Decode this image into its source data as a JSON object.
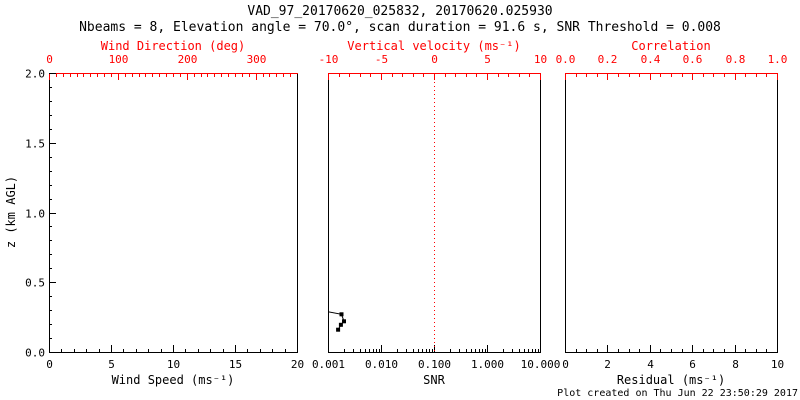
{
  "title": "VAD_97_20170620_025832, 20170620.025930",
  "subtitle": "Nbeams = 8, Elevation angle = 70.0°, scan duration = 91.6 s, SNR Threshold = 0.008",
  "footer": "Plot created on Thu Jun 22 23:50:29 2017",
  "colors": {
    "frame": "#000000",
    "secondary_axis": "#ff0000",
    "data": "#000000",
    "background": "#ffffff"
  },
  "chart_data": [
    {
      "id": "wind-speed-panel",
      "type": "scatter",
      "z_range": [
        0,
        2
      ],
      "bottom_axis": {
        "label": "Wind Speed (ms⁻¹)",
        "scale": "linear",
        "range": [
          0,
          20
        ],
        "ticks": [
          0,
          5,
          10,
          15,
          20
        ],
        "tick_labels": [
          "0",
          "5",
          "10",
          "15",
          "20"
        ],
        "minor_step": 1
      },
      "top_axis": {
        "label": "Wind Direction (deg)",
        "scale": "linear",
        "range": [
          0,
          360
        ],
        "ticks": [
          0,
          100,
          200,
          300
        ],
        "tick_labels": [
          "0",
          "100",
          "200",
          "300"
        ],
        "minor_step": 10
      },
      "y_axis": {
        "label": "z (km AGL)",
        "range": [
          0,
          2
        ],
        "ticks": [
          0,
          0.5,
          1.0,
          1.5,
          2.0
        ],
        "tick_labels": [
          "0.0",
          "0.5",
          "1.0",
          "1.5",
          "2.0"
        ],
        "minor_step": 0.1
      },
      "series": []
    },
    {
      "id": "snr-panel",
      "type": "scatter",
      "z_range": [
        0,
        2
      ],
      "bottom_axis": {
        "label": "SNR",
        "scale": "log",
        "range": [
          0.001,
          10
        ],
        "ticks": [
          0.001,
          0.01,
          0.1,
          1,
          10
        ],
        "tick_labels": [
          "0.001",
          "0.010",
          "0.100",
          "1.000",
          "10.000"
        ]
      },
      "top_axis": {
        "label": "Vertical velocity (ms⁻¹)",
        "scale": "linear",
        "range": [
          -10,
          10
        ],
        "ticks": [
          -10,
          -5,
          0,
          5,
          10
        ],
        "tick_labels": [
          "-10",
          "-5",
          "0",
          "5",
          "10"
        ],
        "minor_step": 1
      },
      "reference_line": {
        "axis": "top",
        "value": 0,
        "style": "dotted",
        "color": "#ff0000"
      },
      "series": [
        {
          "name": "snr-profile",
          "marker": "square",
          "color": "#000000",
          "points": [
            {
              "snr": 0.0008,
              "z": 0.295
            },
            {
              "snr": 0.0018,
              "z": 0.27
            },
            {
              "snr": 0.002,
              "z": 0.22
            },
            {
              "snr": 0.00175,
              "z": 0.195
            },
            {
              "snr": 0.00155,
              "z": 0.16
            }
          ]
        }
      ]
    },
    {
      "id": "residual-panel",
      "type": "scatter",
      "z_range": [
        0,
        2
      ],
      "bottom_axis": {
        "label": "Residual (ms⁻¹)",
        "scale": "linear",
        "range": [
          0,
          10
        ],
        "ticks": [
          0,
          2,
          4,
          6,
          8,
          10
        ],
        "tick_labels": [
          "0",
          "2",
          "4",
          "6",
          "8",
          "10"
        ],
        "minor_step": 0.5
      },
      "top_axis": {
        "label": "Correlation",
        "scale": "linear",
        "range": [
          0,
          1
        ],
        "ticks": [
          0,
          0.2,
          0.4,
          0.6,
          0.8,
          1.0
        ],
        "tick_labels": [
          "0.0",
          "0.2",
          "0.4",
          "0.6",
          "0.8",
          "1.0"
        ],
        "minor_step": 0.05
      },
      "series": []
    }
  ]
}
